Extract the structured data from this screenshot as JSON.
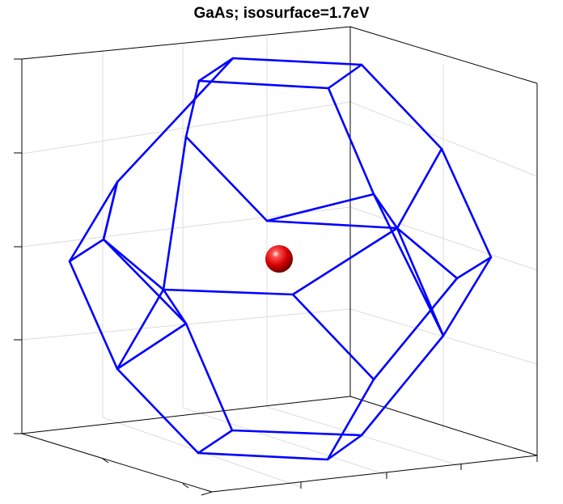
{
  "figure": {
    "title": "GaAs; isosurface=1.7eV"
  },
  "scene": {
    "isosurface_shape": "truncated-octahedron",
    "isosurface_color": "#0000ff",
    "marker_shape": "sphere",
    "marker_color": "#e00000",
    "axes_box": true,
    "grid": true,
    "axis_color": "#000000",
    "grid_color": "#dcdcdc"
  }
}
